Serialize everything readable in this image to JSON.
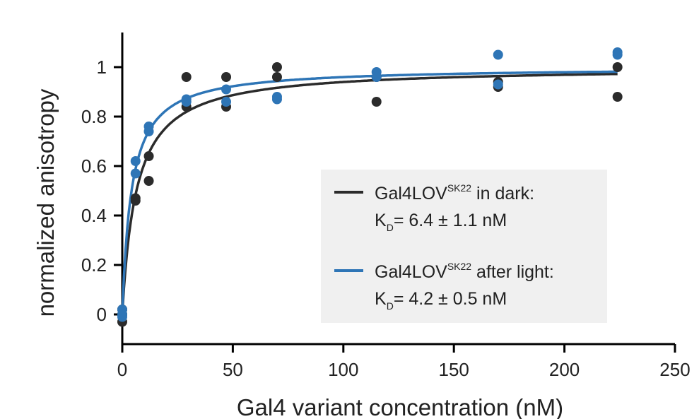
{
  "chart_data": {
    "type": "scatter",
    "xlabel": "Gal4 variant concentration (nM)",
    "ylabel": "normalized anisotropy",
    "xlim": [
      0,
      250
    ],
    "ylim": [
      -0.12,
      1.14
    ],
    "xticks": [
      0,
      50,
      100,
      150,
      200,
      250
    ],
    "yticks": [
      0,
      0.2,
      0.4,
      0.6,
      0.8,
      1
    ],
    "grid": false,
    "legend_position": "lower-right",
    "series": [
      {
        "color": "#2b2b2b",
        "fit_kd": 6.4,
        "fit_xmax": 224,
        "legend_main": "Gal4LOV",
        "legend_super": "SK22",
        "legend_suffix": " in dark:",
        "kd_prefix": "K",
        "kd_sub": "D",
        "kd_value": "= 6.4 ± 1.1 nM",
        "points": [
          [
            0,
            0.02
          ],
          [
            0,
            -0.03
          ],
          [
            0,
            0.0
          ],
          [
            6,
            0.47
          ],
          [
            6,
            0.46
          ],
          [
            12,
            0.64
          ],
          [
            12,
            0.54
          ],
          [
            29,
            0.96
          ],
          [
            29,
            0.84
          ],
          [
            47,
            0.96
          ],
          [
            47,
            0.84
          ],
          [
            70,
            1.0
          ],
          [
            70,
            0.96
          ],
          [
            115,
            0.96
          ],
          [
            115,
            0.86
          ],
          [
            170,
            0.94
          ],
          [
            170,
            0.92
          ],
          [
            224,
            1.0
          ],
          [
            224,
            0.88
          ]
        ]
      },
      {
        "color": "#2e75b6",
        "fit_kd": 4.2,
        "fit_xmax": 224,
        "legend_main": "Gal4LOV",
        "legend_super": "SK22",
        "legend_suffix": " after light:",
        "kd_prefix": "K",
        "kd_sub": "D",
        "kd_value": "= 4.2 ± 0.5 nM",
        "points": [
          [
            0,
            0.02
          ],
          [
            0,
            0.0
          ],
          [
            0,
            -0.01
          ],
          [
            6,
            0.62
          ],
          [
            6,
            0.57
          ],
          [
            12,
            0.76
          ],
          [
            12,
            0.74
          ],
          [
            29,
            0.87
          ],
          [
            29,
            0.86
          ],
          [
            47,
            0.91
          ],
          [
            47,
            0.86
          ],
          [
            70,
            0.88
          ],
          [
            70,
            0.87
          ],
          [
            115,
            0.98
          ],
          [
            115,
            0.96
          ],
          [
            170,
            1.05
          ],
          [
            170,
            0.93
          ],
          [
            224,
            1.06
          ],
          [
            224,
            1.05
          ]
        ]
      }
    ]
  }
}
